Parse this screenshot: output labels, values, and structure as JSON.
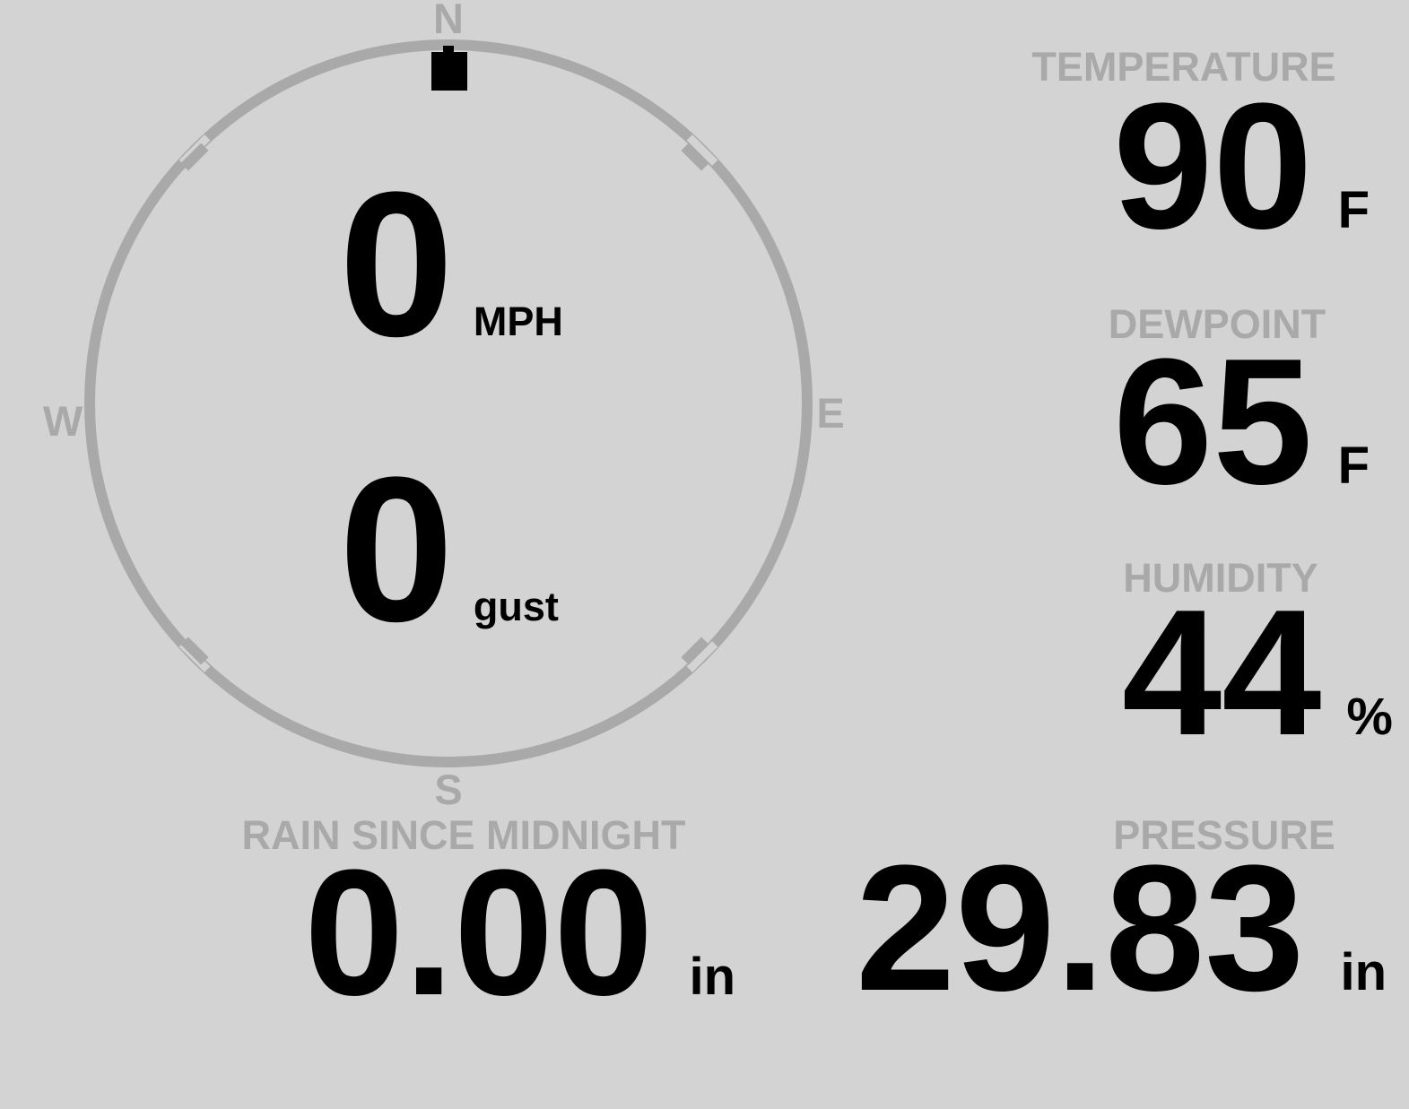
{
  "theme": {
    "background_color": "#d3d3d3",
    "muted_color": "#a9a9a9",
    "text_color": "#000000"
  },
  "wind": {
    "compass": {
      "north": "N",
      "east": "E",
      "south": "S",
      "west": "W"
    },
    "direction": "N",
    "speed": {
      "value": "0",
      "unit": "MPH"
    },
    "gust": {
      "value": "0",
      "unit": "gust"
    }
  },
  "metrics": {
    "temperature": {
      "label": "TEMPERATURE",
      "value": "90",
      "unit": "F"
    },
    "dewpoint": {
      "label": "DEWPOINT",
      "value": "65",
      "unit": "F"
    },
    "humidity": {
      "label": "HUMIDITY",
      "value": "44",
      "unit": "%"
    },
    "rain": {
      "label": "RAIN SINCE MIDNIGHT",
      "value": "0.00",
      "unit": "in"
    },
    "pressure": {
      "label": "PRESSURE",
      "value": "29.83",
      "unit": "in"
    }
  }
}
